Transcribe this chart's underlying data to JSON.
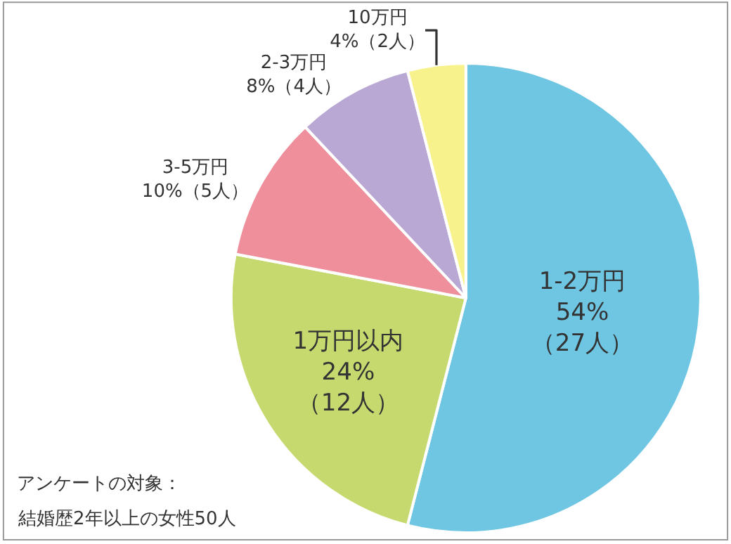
{
  "chart_data": {
    "type": "pie",
    "categories": [
      "1-2万円",
      "1万円以内",
      "3-5万円",
      "2-3万円",
      "10万円"
    ],
    "values": [
      54,
      24,
      10,
      8,
      4
    ],
    "value_labels": [
      "54%\n（27人）",
      "24%\n（12人）",
      "10%（5人）",
      "8%（4人）",
      "4%（2人）"
    ],
    "colors": [
      "#6ec6e2",
      "#c6d96e",
      "#ee8f9b",
      "#b9a8d4",
      "#f8f28c"
    ],
    "annotations": [
      "アンケートの対象：",
      "結婚歴2年以上の女性50人"
    ]
  }
}
